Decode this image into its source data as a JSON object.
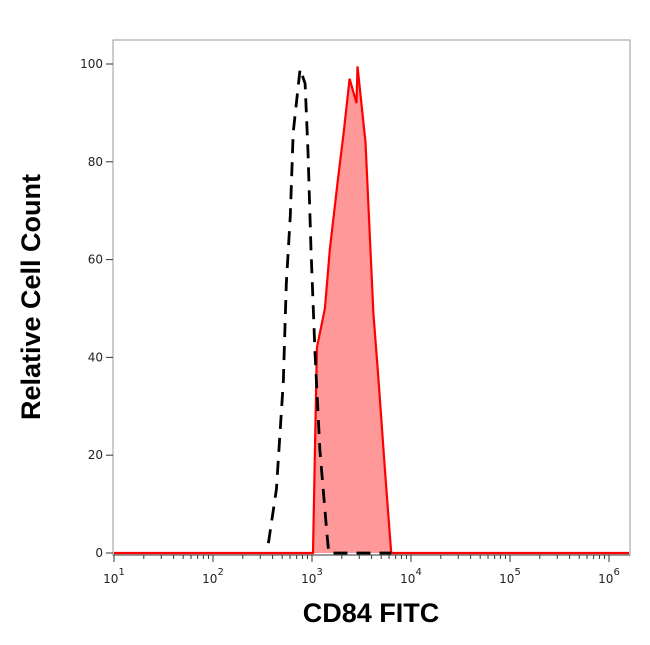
{
  "chart_data": {
    "type": "area",
    "xlabel": "CD84 FITC",
    "ylabel": "Relative Cell Count",
    "xscale": "log",
    "xlim": [
      10,
      1600000
    ],
    "ylim": [
      0,
      100
    ],
    "xticks": [
      {
        "label": "10",
        "exp": "1",
        "value": 10
      },
      {
        "label": "10",
        "exp": "2",
        "value": 100
      },
      {
        "label": "10",
        "exp": "3",
        "value": 1000
      },
      {
        "label": "10",
        "exp": "4",
        "value": 10000
      },
      {
        "label": "10",
        "exp": "5",
        "value": 100000
      },
      {
        "label": "10",
        "exp": "6",
        "value": 1000000
      }
    ],
    "yticks": [
      "0",
      "20",
      "40",
      "60",
      "80",
      "100"
    ],
    "grid": false,
    "series": [
      {
        "style": "solid-filled",
        "color": "#ff0000",
        "fill": "#ff9999",
        "x": [
          10,
          1000,
          1023,
          1122,
          1349,
          1514,
          1820,
          2089,
          2399,
          2818,
          2884,
          3467,
          4169,
          4677,
          5495,
          6310,
          1600000
        ],
        "y": [
          0,
          0,
          0,
          42,
          50,
          62,
          76,
          86,
          97,
          92,
          99.5,
          84,
          49,
          36,
          16,
          0,
          0
        ]
      },
      {
        "style": "dashed",
        "color": "#000000",
        "x": [
          363,
          437,
          513,
          550,
          603,
          646,
          759,
          851,
          912,
          977,
          1072,
          1202,
          1413,
          1479,
          6310
        ],
        "y": [
          2,
          13,
          35,
          55,
          69,
          86,
          99,
          96,
          82,
          62,
          41,
          21,
          4,
          0,
          0
        ]
      }
    ]
  }
}
